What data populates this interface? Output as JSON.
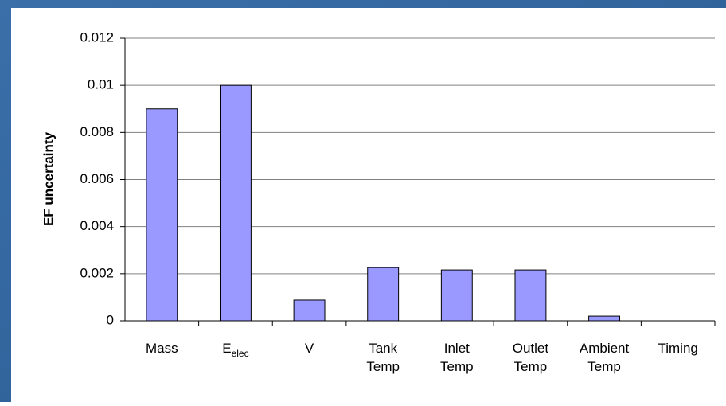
{
  "chart_data": {
    "type": "bar",
    "y_label": "EF uncertainty",
    "categories": [
      [
        "Mass"
      ],
      [
        "E"
      ],
      [
        "V"
      ],
      [
        "Tank",
        "Temp"
      ],
      [
        "Inlet",
        "Temp"
      ],
      [
        "Outlet",
        "Temp"
      ],
      [
        "Ambient",
        "Temp"
      ],
      [
        "Timing"
      ]
    ],
    "category_subscripts": {
      "1": "elec"
    },
    "values": [
      0.009,
      0.01,
      0.00088,
      0.00226,
      0.00216,
      0.00216,
      0.0002,
      0
    ],
    "color": "#9999ff",
    "ylim": [
      0,
      0.012
    ],
    "yticks": [
      0,
      0.002,
      0.004,
      0.006,
      0.008,
      0.01,
      0.012
    ],
    "grid": true
  }
}
